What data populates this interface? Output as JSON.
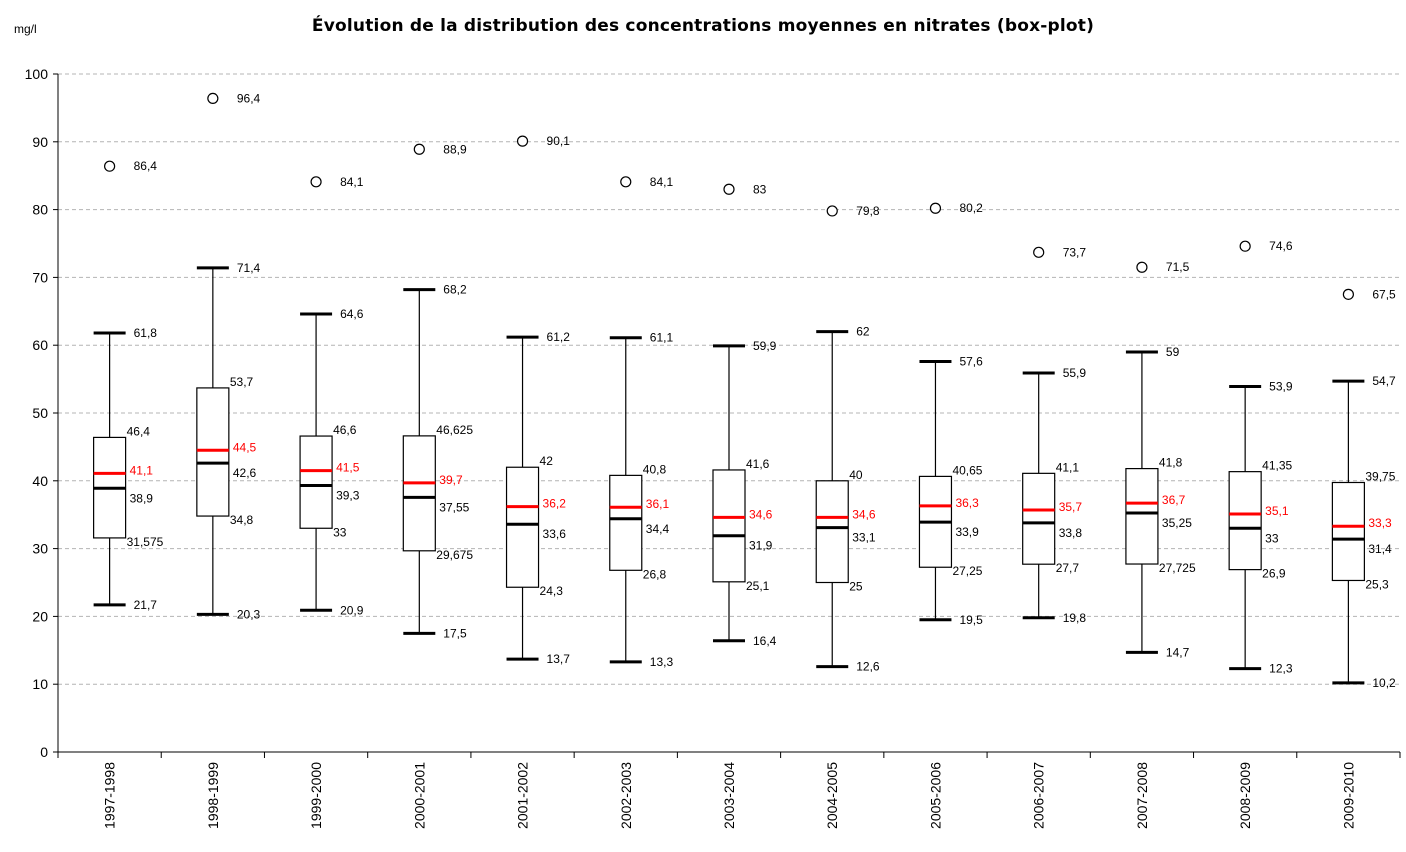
{
  "chart_data": {
    "type": "boxplot",
    "title": "Évolution de la distribution des concentrations moyennes en nitrates (box-plot)",
    "ylabel": "mg/l",
    "ylim": [
      0,
      100
    ],
    "yticks": [
      0,
      10,
      20,
      30,
      40,
      50,
      60,
      70,
      80,
      90,
      100
    ],
    "grid": true,
    "mean_color": "#ff0000",
    "median_color": "#000000",
    "categories": [
      "1997-1998",
      "1998-1999",
      "1999-2000",
      "2000-2001",
      "2001-2002",
      "2002-2003",
      "2003-2004",
      "2004-2005",
      "2005-2006",
      "2006-2007",
      "2007-2008",
      "2008-2009",
      "2009-2010"
    ],
    "boxes": [
      {
        "outlier": 86.4,
        "outlier_label": "86,4",
        "whisker_high": 61.8,
        "whisker_high_label": "61,8",
        "q3": 46.4,
        "q3_label": "46,4",
        "mean": 41.1,
        "mean_label": "41,1",
        "median": 38.9,
        "median_label": "38,9",
        "q1": 31.575,
        "q1_label": "31,575",
        "whisker_low": 21.7,
        "whisker_low_label": "21,7"
      },
      {
        "outlier": 96.4,
        "outlier_label": "96,4",
        "whisker_high": 71.4,
        "whisker_high_label": "71,4",
        "q3": 53.7,
        "q3_label": "53,7",
        "mean": 44.5,
        "mean_label": "44,5",
        "median": 42.6,
        "median_label": "42,6",
        "q1": 34.8,
        "q1_label": "34,8",
        "whisker_low": 20.3,
        "whisker_low_label": "20,3"
      },
      {
        "outlier": 84.1,
        "outlier_label": "84,1",
        "whisker_high": 64.6,
        "whisker_high_label": "64,6",
        "q3": 46.6,
        "q3_label": "46,6",
        "mean": 41.5,
        "mean_label": "41,5",
        "median": 39.3,
        "median_label": "39,3",
        "q1": 33,
        "q1_label": "33",
        "whisker_low": 20.9,
        "whisker_low_label": "20,9"
      },
      {
        "outlier": 88.9,
        "outlier_label": "88,9",
        "whisker_high": 68.2,
        "whisker_high_label": "68,2",
        "q3": 46.625,
        "q3_label": "46,625",
        "mean": 39.7,
        "mean_label": "39,7",
        "median": 37.55,
        "median_label": "37,55",
        "q1": 29.675,
        "q1_label": "29,675",
        "whisker_low": 17.5,
        "whisker_low_label": "17,5"
      },
      {
        "outlier": 90.1,
        "outlier_label": "90,1",
        "whisker_high": 61.2,
        "whisker_high_label": "61,2",
        "q3": 42,
        "q3_label": "42",
        "mean": 36.2,
        "mean_label": "36,2",
        "median": 33.6,
        "median_label": "33,6",
        "q1": 24.3,
        "q1_label": "24,3",
        "whisker_low": 13.7,
        "whisker_low_label": "13,7"
      },
      {
        "outlier": 84.1,
        "outlier_label": "84,1",
        "whisker_high": 61.1,
        "whisker_high_label": "61,1",
        "q3": 40.8,
        "q3_label": "40,8",
        "mean": 36.1,
        "mean_label": "36,1",
        "median": 34.4,
        "median_label": "34,4",
        "q1": 26.8,
        "q1_label": "26,8",
        "whisker_low": 13.3,
        "whisker_low_label": "13,3"
      },
      {
        "outlier": 83,
        "outlier_label": "83",
        "whisker_high": 59.9,
        "whisker_high_label": "59,9",
        "q3": 41.6,
        "q3_label": "41,6",
        "mean": 34.6,
        "mean_label": "34,6",
        "median": 31.9,
        "median_label": "31,9",
        "q1": 25.1,
        "q1_label": "25,1",
        "whisker_low": 16.4,
        "whisker_low_label": "16,4"
      },
      {
        "outlier": 79.8,
        "outlier_label": "79,8",
        "whisker_high": 62,
        "whisker_high_label": "62",
        "q3": 40,
        "q3_label": "40",
        "mean": 34.6,
        "mean_label": "34,6",
        "median": 33.1,
        "median_label": "33,1",
        "q1": 25,
        "q1_label": "25",
        "whisker_low": 12.6,
        "whisker_low_label": "12,6"
      },
      {
        "outlier": 80.2,
        "outlier_label": "80,2",
        "whisker_high": 57.6,
        "whisker_high_label": "57,6",
        "q3": 40.65,
        "q3_label": "40,65",
        "mean": 36.3,
        "mean_label": "36,3",
        "median": 33.9,
        "median_label": "33,9",
        "q1": 27.25,
        "q1_label": "27,25",
        "whisker_low": 19.5,
        "whisker_low_label": "19,5"
      },
      {
        "outlier": 73.7,
        "outlier_label": "73,7",
        "whisker_high": 55.9,
        "whisker_high_label": "55,9",
        "q3": 41.1,
        "q3_label": "41,1",
        "mean": 35.7,
        "mean_label": "35,7",
        "median": 33.8,
        "median_label": "33,8",
        "q1": 27.7,
        "q1_label": "27,7",
        "whisker_low": 19.8,
        "whisker_low_label": "19,8"
      },
      {
        "outlier": 71.5,
        "outlier_label": "71,5",
        "whisker_high": 59,
        "whisker_high_label": "59",
        "q3": 41.8,
        "q3_label": "41,8",
        "mean": 36.7,
        "mean_label": "36,7",
        "median": 35.25,
        "median_label": "35,25",
        "q1": 27.725,
        "q1_label": "27,725",
        "whisker_low": 14.7,
        "whisker_low_label": "14,7"
      },
      {
        "outlier": 74.6,
        "outlier_label": "74,6",
        "whisker_high": 53.9,
        "whisker_high_label": "53,9",
        "q3": 41.35,
        "q3_label": "41,35",
        "mean": 35.1,
        "mean_label": "35,1",
        "median": 33,
        "median_label": "33",
        "q1": 26.9,
        "q1_label": "26,9",
        "whisker_low": 12.3,
        "whisker_low_label": "12,3"
      },
      {
        "outlier": 67.5,
        "outlier_label": "67,5",
        "whisker_high": 54.7,
        "whisker_high_label": "54,7",
        "q3": 39.75,
        "q3_label": "39,75",
        "mean": 33.3,
        "mean_label": "33,3",
        "median": 31.4,
        "median_label": "31,4",
        "q1": 25.3,
        "q1_label": "25,3",
        "whisker_low": 10.2,
        "whisker_low_label": "10,2"
      }
    ]
  }
}
